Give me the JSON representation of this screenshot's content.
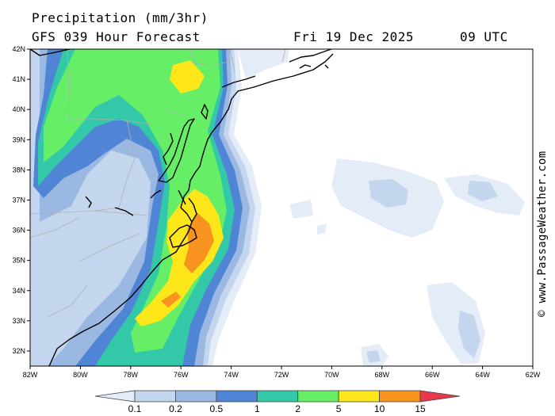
{
  "header": {
    "title": "Precipitation (mm/3hr)",
    "model_line": "GFS 039 Hour Forecast",
    "date": "Fri 19 Dec 2025",
    "time": "09 UTC"
  },
  "watermark": "© www.PassageWeather.com",
  "map": {
    "lon_range": [
      -82,
      -62
    ],
    "lat_range": [
      31.5,
      42
    ],
    "lat_labels": [
      "42N",
      "41N",
      "40N",
      "39N",
      "38N",
      "37N",
      "36N",
      "35N",
      "34N",
      "33N",
      "32N"
    ],
    "lat_values": [
      42,
      41,
      40,
      39,
      38,
      37,
      36,
      35,
      34,
      33,
      32
    ],
    "lon_labels": [
      "82W",
      "80W",
      "78W",
      "76W",
      "74W",
      "72W",
      "70W",
      "68W",
      "66W",
      "64W",
      "62W"
    ],
    "lon_values": [
      -82,
      -80,
      -78,
      -76,
      -74,
      -72,
      -70,
      -68,
      -66,
      -64,
      -62
    ]
  },
  "legend": {
    "colors": [
      "#e4ecf7",
      "#c4d6ee",
      "#9bb8e2",
      "#4f85d4",
      "#32c8a8",
      "#66ee66",
      "#fde61a",
      "#f7931e",
      "#e8394a"
    ],
    "labels": [
      "0.1",
      "0.2",
      "0.5",
      "1",
      "2",
      "5",
      "10",
      "15"
    ]
  }
}
